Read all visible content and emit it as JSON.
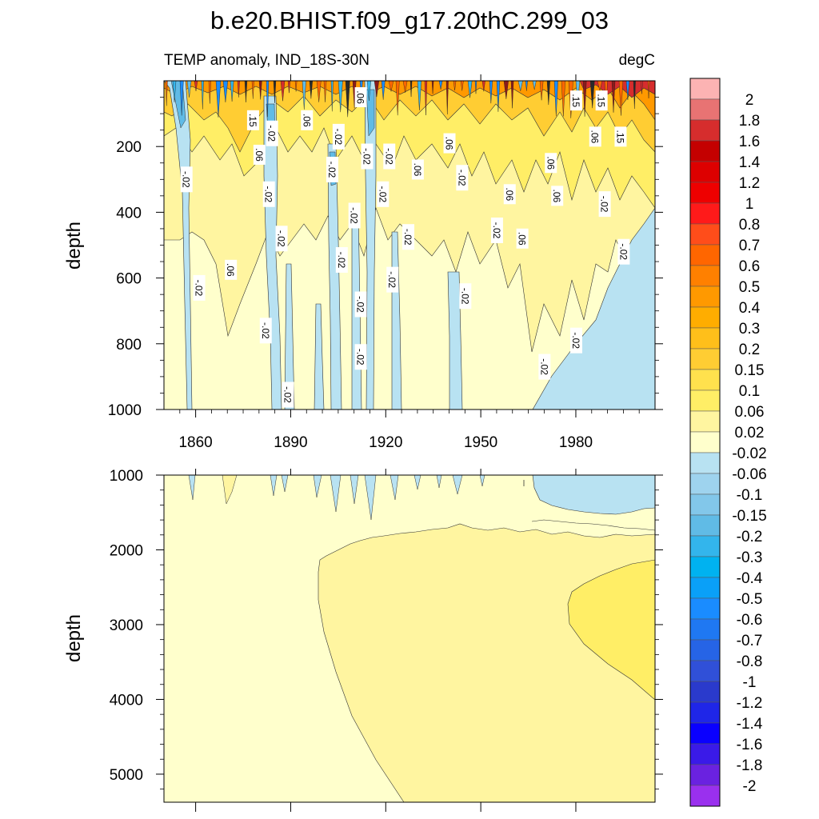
{
  "figure": {
    "title": "b.e20.BHIST.f09_g17.20thC.299_03",
    "subtitle_left": "TEMP anomaly, IND_18S-30N",
    "subtitle_right": "degC"
  },
  "chart_data": [
    {
      "type": "heatmap",
      "panel": "upper",
      "ylabel": "depth",
      "x_ticks": [
        1860,
        1890,
        1920,
        1950,
        1980
      ],
      "y_ticks": [
        200,
        400,
        600,
        800,
        1000
      ],
      "xlim": [
        1850,
        2005
      ],
      "ylim": [
        1000,
        0
      ],
      "contour_labels": [
        {
          "text": "-.02",
          "x": 1857,
          "y": 300
        },
        {
          "text": ".15",
          "x": 1878,
          "y": 120
        },
        {
          "text": ".06",
          "x": 1880,
          "y": 225
        },
        {
          "text": "-.02",
          "x": 1884,
          "y": 160
        },
        {
          "text": ".06",
          "x": 1895,
          "y": 120
        },
        {
          "text": "-.02",
          "x": 1905,
          "y": 170
        },
        {
          "text": ".06",
          "x": 1912,
          "y": 50
        },
        {
          "text": ".06",
          "x": 1871,
          "y": 575
        },
        {
          "text": "-.02",
          "x": 1861,
          "y": 630
        },
        {
          "text": "-.02",
          "x": 1883,
          "y": 345
        },
        {
          "text": "-.02",
          "x": 1887,
          "y": 480
        },
        {
          "text": "-.02",
          "x": 1903,
          "y": 270
        },
        {
          "text": "-.02",
          "x": 1910,
          "y": 410
        },
        {
          "text": "-.02",
          "x": 1906,
          "y": 545
        },
        {
          "text": "-.02",
          "x": 1914,
          "y": 230
        },
        {
          "text": "-.02",
          "x": 1921,
          "y": 230
        },
        {
          "text": "-.02",
          "x": 1927,
          "y": 475
        },
        {
          "text": "-.02",
          "x": 1919,
          "y": 345
        },
        {
          "text": "-.02",
          "x": 1912,
          "y": 680
        },
        {
          "text": "-.02",
          "x": 1922,
          "y": 605
        },
        {
          "text": ".06",
          "x": 1930,
          "y": 270
        },
        {
          "text": ".06",
          "x": 1940,
          "y": 190
        },
        {
          "text": "-.02",
          "x": 1944,
          "y": 295
        },
        {
          "text": "-.02",
          "x": 1945,
          "y": 655
        },
        {
          "text": ".06",
          "x": 1959,
          "y": 345
        },
        {
          "text": ".06",
          "x": 1963,
          "y": 480
        },
        {
          "text": ".06",
          "x": 1972,
          "y": 250
        },
        {
          "text": ".06",
          "x": 1974,
          "y": 350
        },
        {
          "text": ".15",
          "x": 1980,
          "y": 60
        },
        {
          "text": ".15",
          "x": 1988,
          "y": 60
        },
        {
          "text": ".06",
          "x": 1986,
          "y": 170
        },
        {
          "text": ".15",
          "x": 1994,
          "y": 170
        },
        {
          "text": "-.02",
          "x": 1989,
          "y": 375
        },
        {
          "text": "-.02",
          "x": 1995,
          "y": 520
        },
        {
          "text": "-.02",
          "x": 1955,
          "y": 455
        },
        {
          "text": "-.02",
          "x": 1882,
          "y": 760
        },
        {
          "text": "-.02",
          "x": 1912,
          "y": 840
        },
        {
          "text": "-.02",
          "x": 1889,
          "y": 955
        },
        {
          "text": "-.02",
          "x": 1970,
          "y": 870
        },
        {
          "text": "-.02",
          "x": 1980,
          "y": 790
        }
      ]
    },
    {
      "type": "heatmap",
      "panel": "lower",
      "ylabel": "depth",
      "y_ticks": [
        1000,
        2000,
        3000,
        4000,
        5000
      ],
      "xlim": [
        1850,
        2005
      ],
      "ylim": [
        5375,
        1000
      ]
    }
  ],
  "colorbar": {
    "labels": [
      "2",
      "1.8",
      "1.6",
      "1.4",
      "1.2",
      "1",
      "0.8",
      "0.7",
      "0.6",
      "0.5",
      "0.4",
      "0.3",
      "0.2",
      "0.15",
      "0.1",
      "0.06",
      "0.02",
      "-0.02",
      "-0.06",
      "-0.1",
      "-0.15",
      "-0.2",
      "-0.3",
      "-0.4",
      "-0.5",
      "-0.6",
      "-0.7",
      "-0.8",
      "-1",
      "-1.2",
      "-1.4",
      "-1.6",
      "-1.8",
      "-2"
    ],
    "colors": [
      "#fcb3b3",
      "#e87373",
      "#d62d2d",
      "#c40000",
      "#dd0000",
      "#ee0000",
      "#ff1a1a",
      "#ff4d1a",
      "#ff6600",
      "#ff8000",
      "#ff9900",
      "#ffad00",
      "#ffbf1a",
      "#ffcd33",
      "#ffe14d",
      "#ffee66",
      "#fff5a0",
      "#ffffcc",
      "#b8e2f2",
      "#9ed3ee",
      "#82c7ea",
      "#60bbe6",
      "#33b5ec",
      "#00b2f0",
      "#0aa0f8",
      "#1a8cff",
      "#1f78f2",
      "#2664e6",
      "#3050d8",
      "#2a3acc",
      "#1f26e8",
      "#0a00ff",
      "#3a1ae8",
      "#6a22e0",
      "#9a30ee"
    ]
  }
}
